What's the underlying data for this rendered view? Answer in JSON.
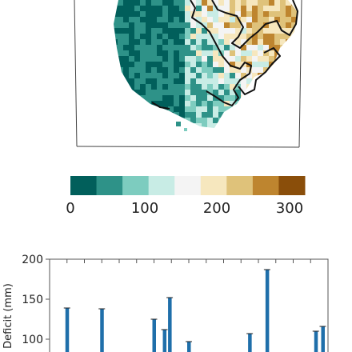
{
  "colorbar": {
    "ticks": [
      "0",
      "100",
      "200",
      "300"
    ],
    "colors": [
      "#015f5b",
      "#2e9288",
      "#7dccbf",
      "#c8ece5",
      "#f4f4f4",
      "#f6e7be",
      "#dfc27a",
      "#be852f",
      "#8a4e0a"
    ],
    "range": [
      0,
      300
    ]
  },
  "map": {
    "land_colors": [
      "#015f5b",
      "#2e9288",
      "#7dccbf",
      "#c8ece5",
      "#f4f4f4",
      "#f6e7be",
      "#dfc27a",
      "#be852f"
    ]
  },
  "chart_data": {
    "type": "bar",
    "ylabel": "Deficit (mm)",
    "ylim": [
      85,
      200
    ],
    "yticks": [
      "100",
      "150",
      "200"
    ],
    "bar_color": "#1f6faa",
    "x": [
      1,
      3,
      6,
      6.6,
      6.9,
      8,
      11.5,
      12.5,
      15.3,
      15.7
    ],
    "values": [
      139,
      138,
      125,
      112,
      152,
      97,
      107,
      187,
      110,
      116
    ],
    "grid": false
  }
}
